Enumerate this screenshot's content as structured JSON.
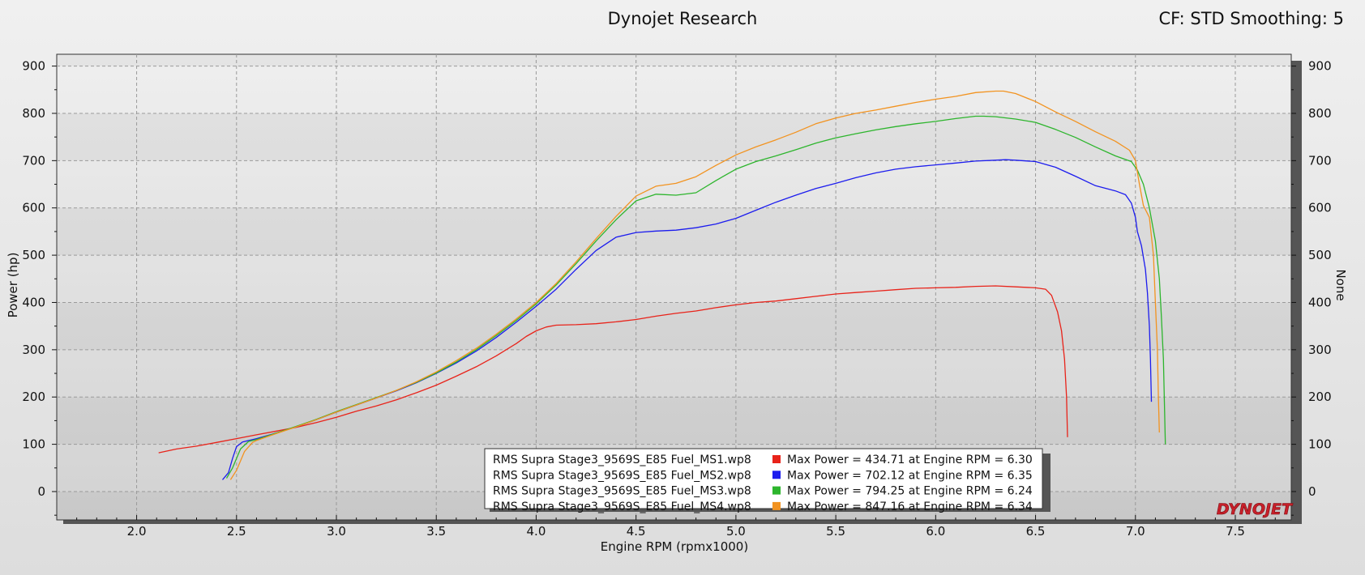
{
  "header": {
    "title": "Dynojet Research",
    "cf_text": "CF: STD Smoothing: 5"
  },
  "logo": {
    "text": "DYNOJET"
  },
  "chart_data": {
    "type": "line",
    "xlabel": "Engine RPM (rpmx1000)",
    "ylabel": "Power (hp)",
    "y2label": "None",
    "xlim": [
      1.6,
      7.78
    ],
    "ylim": [
      -60,
      925
    ],
    "xticks": [
      "2.0",
      "2.5",
      "3.0",
      "3.5",
      "4.0",
      "4.5",
      "5.0",
      "5.5",
      "6.0",
      "6.5",
      "7.0",
      "7.5"
    ],
    "yticks": [
      "0",
      "100",
      "200",
      "300",
      "400",
      "500",
      "600",
      "700",
      "800",
      "900"
    ],
    "grid": true,
    "legend_position": "bottom-center",
    "series": [
      {
        "name": "RMS Supra Stage3_9569S_E85 Fuel_MS1.wp8",
        "color": "#e8231a",
        "annotation": "Max Power = 434.71 at Engine RPM = 6.30",
        "points": [
          [
            2.11,
            82
          ],
          [
            2.2,
            90
          ],
          [
            2.3,
            96
          ],
          [
            2.4,
            104
          ],
          [
            2.5,
            112
          ],
          [
            2.6,
            120
          ],
          [
            2.7,
            128
          ],
          [
            2.8,
            136
          ],
          [
            2.9,
            146
          ],
          [
            3.0,
            157
          ],
          [
            3.1,
            170
          ],
          [
            3.2,
            181
          ],
          [
            3.3,
            194
          ],
          [
            3.4,
            209
          ],
          [
            3.5,
            225
          ],
          [
            3.6,
            244
          ],
          [
            3.7,
            264
          ],
          [
            3.8,
            287
          ],
          [
            3.9,
            313
          ],
          [
            3.95,
            328
          ],
          [
            4.0,
            340
          ],
          [
            4.05,
            348
          ],
          [
            4.1,
            352
          ],
          [
            4.2,
            353
          ],
          [
            4.3,
            355
          ],
          [
            4.4,
            359
          ],
          [
            4.5,
            364
          ],
          [
            4.6,
            371
          ],
          [
            4.7,
            377
          ],
          [
            4.8,
            382
          ],
          [
            4.9,
            389
          ],
          [
            5.0,
            395
          ],
          [
            5.1,
            400
          ],
          [
            5.2,
            403
          ],
          [
            5.3,
            408
          ],
          [
            5.4,
            413
          ],
          [
            5.5,
            418
          ],
          [
            5.6,
            421
          ],
          [
            5.7,
            424
          ],
          [
            5.8,
            427
          ],
          [
            5.9,
            430
          ],
          [
            6.0,
            431
          ],
          [
            6.1,
            432
          ],
          [
            6.2,
            434
          ],
          [
            6.3,
            435
          ],
          [
            6.4,
            433
          ],
          [
            6.5,
            431
          ],
          [
            6.55,
            428
          ],
          [
            6.58,
            415
          ],
          [
            6.61,
            380
          ],
          [
            6.63,
            340
          ],
          [
            6.645,
            280
          ],
          [
            6.655,
            200
          ],
          [
            6.66,
            115
          ]
        ]
      },
      {
        "name": "RMS Supra Stage3_9569S_E85 Fuel_MS2.wp8",
        "color": "#1c1cee",
        "annotation": "Max Power = 702.12 at Engine RPM = 6.35",
        "points": [
          [
            2.43,
            25
          ],
          [
            2.46,
            40
          ],
          [
            2.48,
            70
          ],
          [
            2.5,
            95
          ],
          [
            2.53,
            105
          ],
          [
            2.6,
            112
          ],
          [
            2.7,
            124
          ],
          [
            2.8,
            137
          ],
          [
            2.9,
            152
          ],
          [
            3.0,
            168
          ],
          [
            3.1,
            183
          ],
          [
            3.2,
            198
          ],
          [
            3.3,
            213
          ],
          [
            3.4,
            230
          ],
          [
            3.5,
            250
          ],
          [
            3.6,
            272
          ],
          [
            3.7,
            297
          ],
          [
            3.8,
            326
          ],
          [
            3.9,
            358
          ],
          [
            4.0,
            392
          ],
          [
            4.1,
            428
          ],
          [
            4.2,
            470
          ],
          [
            4.3,
            510
          ],
          [
            4.4,
            538
          ],
          [
            4.5,
            548
          ],
          [
            4.6,
            551
          ],
          [
            4.7,
            553
          ],
          [
            4.8,
            558
          ],
          [
            4.9,
            566
          ],
          [
            5.0,
            578
          ],
          [
            5.1,
            595
          ],
          [
            5.2,
            612
          ],
          [
            5.3,
            627
          ],
          [
            5.4,
            641
          ],
          [
            5.5,
            652
          ],
          [
            5.6,
            664
          ],
          [
            5.7,
            674
          ],
          [
            5.8,
            682
          ],
          [
            5.9,
            687
          ],
          [
            6.0,
            691
          ],
          [
            6.1,
            695
          ],
          [
            6.2,
            699
          ],
          [
            6.3,
            701
          ],
          [
            6.35,
            702
          ],
          [
            6.4,
            701
          ],
          [
            6.5,
            698
          ],
          [
            6.6,
            686
          ],
          [
            6.7,
            667
          ],
          [
            6.8,
            647
          ],
          [
            6.9,
            636
          ],
          [
            6.95,
            628
          ],
          [
            6.98,
            610
          ],
          [
            7.0,
            580
          ],
          [
            7.01,
            550
          ],
          [
            7.03,
            520
          ],
          [
            7.05,
            470
          ],
          [
            7.06,
            420
          ],
          [
            7.07,
            350
          ],
          [
            7.075,
            280
          ],
          [
            7.08,
            190
          ]
        ]
      },
      {
        "name": "RMS Supra Stage3_9569S_E85 Fuel_MS3.wp8",
        "color": "#2db52d",
        "annotation": "Max Power = 794.25 at Engine RPM = 6.24",
        "points": [
          [
            2.45,
            28
          ],
          [
            2.48,
            50
          ],
          [
            2.52,
            90
          ],
          [
            2.56,
            106
          ],
          [
            2.6,
            110
          ],
          [
            2.7,
            124
          ],
          [
            2.8,
            138
          ],
          [
            2.9,
            153
          ],
          [
            3.0,
            169
          ],
          [
            3.1,
            184
          ],
          [
            3.2,
            199
          ],
          [
            3.3,
            214
          ],
          [
            3.4,
            231
          ],
          [
            3.5,
            251
          ],
          [
            3.6,
            274
          ],
          [
            3.7,
            300
          ],
          [
            3.8,
            330
          ],
          [
            3.9,
            362
          ],
          [
            4.0,
            397
          ],
          [
            4.1,
            437
          ],
          [
            4.2,
            482
          ],
          [
            4.3,
            530
          ],
          [
            4.4,
            575
          ],
          [
            4.5,
            615
          ],
          [
            4.6,
            629
          ],
          [
            4.7,
            627
          ],
          [
            4.8,
            632
          ],
          [
            4.9,
            658
          ],
          [
            5.0,
            682
          ],
          [
            5.1,
            698
          ],
          [
            5.2,
            710
          ],
          [
            5.3,
            723
          ],
          [
            5.4,
            737
          ],
          [
            5.5,
            748
          ],
          [
            5.6,
            757
          ],
          [
            5.7,
            765
          ],
          [
            5.8,
            772
          ],
          [
            5.9,
            778
          ],
          [
            6.0,
            783
          ],
          [
            6.1,
            789
          ],
          [
            6.2,
            794
          ],
          [
            6.24,
            794
          ],
          [
            6.3,
            793
          ],
          [
            6.4,
            788
          ],
          [
            6.5,
            781
          ],
          [
            6.6,
            766
          ],
          [
            6.7,
            749
          ],
          [
            6.8,
            729
          ],
          [
            6.9,
            710
          ],
          [
            6.98,
            698
          ],
          [
            7.01,
            680
          ],
          [
            7.04,
            650
          ],
          [
            7.07,
            600
          ],
          [
            7.1,
            530
          ],
          [
            7.12,
            450
          ],
          [
            7.13,
            370
          ],
          [
            7.14,
            280
          ],
          [
            7.145,
            190
          ],
          [
            7.15,
            100
          ]
        ]
      },
      {
        "name": "RMS Supra Stage3_9569S_E85 Fuel_MS4.wp8",
        "color": "#f29320",
        "annotation": "Max Power = 847.16 at Engine RPM = 6.34",
        "points": [
          [
            2.47,
            25
          ],
          [
            2.5,
            45
          ],
          [
            2.54,
            85
          ],
          [
            2.58,
            104
          ],
          [
            2.6,
            108
          ],
          [
            2.7,
            123
          ],
          [
            2.8,
            137
          ],
          [
            2.9,
            152
          ],
          [
            3.0,
            168
          ],
          [
            3.1,
            183
          ],
          [
            3.2,
            198
          ],
          [
            3.3,
            214
          ],
          [
            3.4,
            232
          ],
          [
            3.5,
            253
          ],
          [
            3.6,
            277
          ],
          [
            3.7,
            303
          ],
          [
            3.8,
            333
          ],
          [
            3.9,
            365
          ],
          [
            4.0,
            400
          ],
          [
            4.1,
            440
          ],
          [
            4.2,
            486
          ],
          [
            4.3,
            535
          ],
          [
            4.4,
            582
          ],
          [
            4.5,
            625
          ],
          [
            4.6,
            646
          ],
          [
            4.7,
            652
          ],
          [
            4.8,
            666
          ],
          [
            4.9,
            690
          ],
          [
            5.0,
            712
          ],
          [
            5.1,
            729
          ],
          [
            5.2,
            744
          ],
          [
            5.3,
            760
          ],
          [
            5.4,
            778
          ],
          [
            5.5,
            790
          ],
          [
            5.6,
            800
          ],
          [
            5.7,
            807
          ],
          [
            5.8,
            815
          ],
          [
            5.9,
            823
          ],
          [
            6.0,
            830
          ],
          [
            6.1,
            836
          ],
          [
            6.2,
            844
          ],
          [
            6.3,
            847
          ],
          [
            6.34,
            847
          ],
          [
            6.4,
            842
          ],
          [
            6.5,
            825
          ],
          [
            6.6,
            803
          ],
          [
            6.7,
            783
          ],
          [
            6.8,
            761
          ],
          [
            6.9,
            741
          ],
          [
            6.97,
            722
          ],
          [
            7.0,
            700
          ],
          [
            7.02,
            650
          ],
          [
            7.04,
            605
          ],
          [
            7.07,
            580
          ],
          [
            7.09,
            500
          ],
          [
            7.1,
            400
          ],
          [
            7.11,
            300
          ],
          [
            7.115,
            200
          ],
          [
            7.12,
            125
          ]
        ]
      }
    ]
  }
}
